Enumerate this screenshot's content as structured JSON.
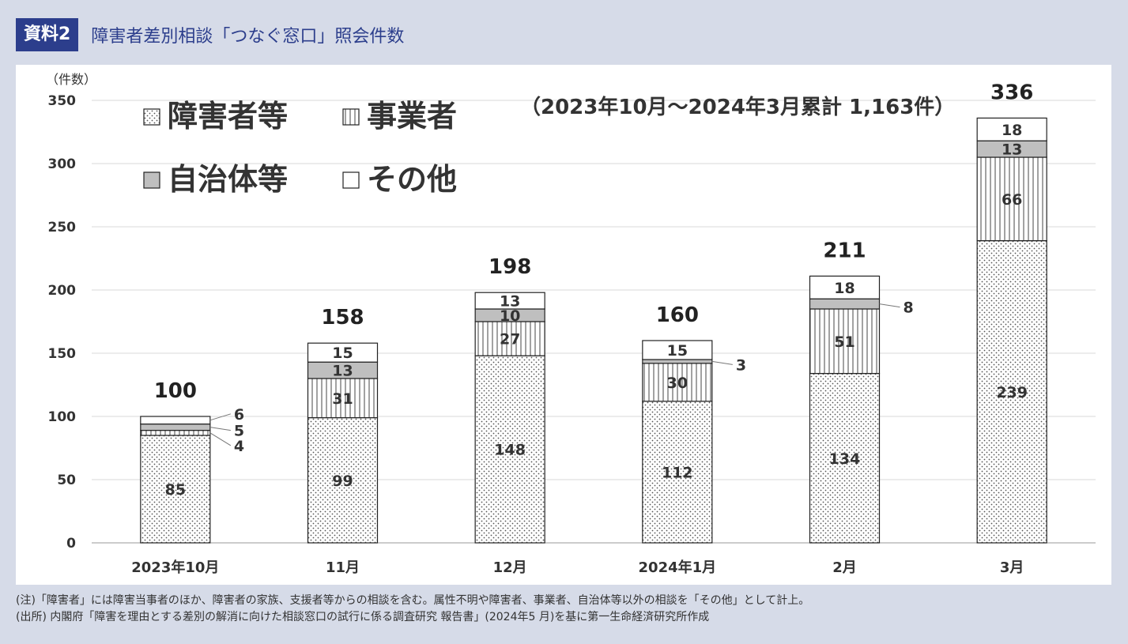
{
  "header": {
    "badge": "資料2",
    "title": "障害者差別相談「つなぐ窓口」照会件数"
  },
  "chart_data": {
    "type": "bar",
    "stacked": true,
    "title": "",
    "ylabel": "（件数）",
    "ylim": [
      0,
      350
    ],
    "yticks": [
      0,
      50,
      100,
      150,
      200,
      250,
      300,
      350
    ],
    "categories": [
      "2023年10月",
      "11月",
      "12月",
      "2024年1月",
      "2月",
      "3月"
    ],
    "series": [
      {
        "name": "障害者等",
        "values": [
          85,
          99,
          148,
          112,
          134,
          239
        ],
        "pattern": "dots"
      },
      {
        "name": "事業者",
        "values": [
          4,
          31,
          27,
          30,
          51,
          66
        ],
        "pattern": "vlines"
      },
      {
        "name": "自治体等",
        "values": [
          5,
          13,
          10,
          3,
          8,
          13
        ],
        "pattern": "gray",
        "color": "#bfbfbf"
      },
      {
        "name": "その他",
        "values": [
          6,
          15,
          13,
          15,
          18,
          18
        ],
        "pattern": "white",
        "color": "#ffffff"
      }
    ],
    "totals": [
      "100",
      "158",
      "198",
      "160",
      "211",
      "336"
    ],
    "annotation": "（2023年10月～2024年3月累計 1,163件）",
    "legend_placement": "top-left",
    "grid": true
  },
  "notes": [
    "(注)「障害者」には障害当事者のほか、障害者の家族、支援者等からの相談を含む。属性不明や障害者、事業者、自治体等以外の相談を「その他」として計上。",
    "(出所) 内閣府「障害を理由とする差別の解消に向けた相談窓口の試行に係る調査研究 報告書」(2024年5 月)を基に第一生命経済研究所作成"
  ]
}
